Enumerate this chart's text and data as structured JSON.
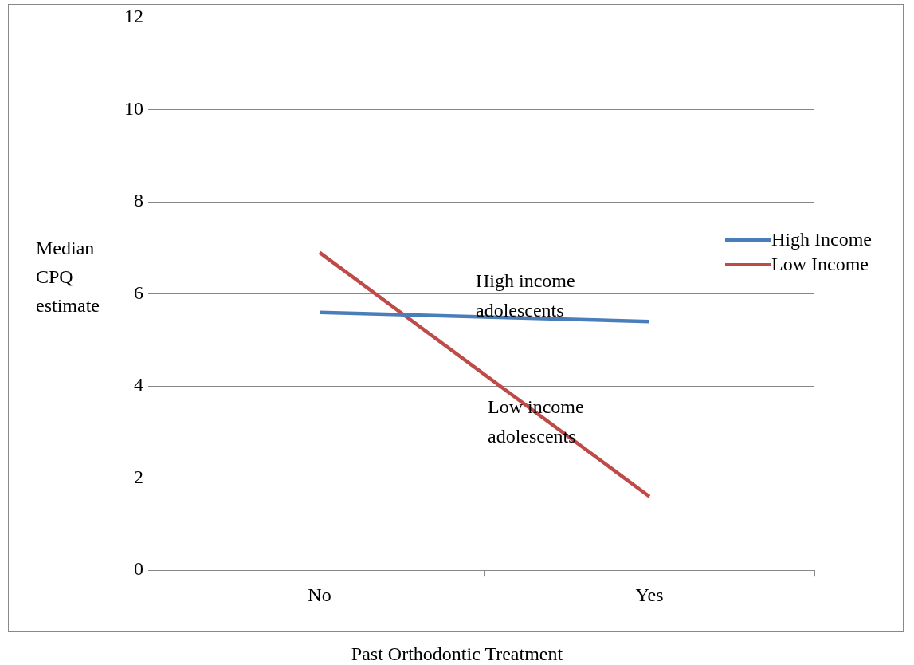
{
  "chart_data": {
    "type": "line",
    "xlabel": "Past Orthodontic Treatment",
    "ylabel": "Median CPQ estimate",
    "categories": [
      "No",
      "Yes"
    ],
    "series": [
      {
        "name": "High Income",
        "color": "#4a7ebb",
        "values": [
          5.6,
          5.4
        ]
      },
      {
        "name": "Low Income",
        "color": "#be4b48",
        "values": [
          6.9,
          1.6
        ]
      }
    ],
    "ylim": [
      0,
      12
    ],
    "yticks": [
      0,
      2,
      4,
      6,
      8,
      10,
      12
    ],
    "grid": "y",
    "legend": "right",
    "marker": "none",
    "annotations": [
      "High income adolescents",
      "Low income adolescents"
    ]
  }
}
